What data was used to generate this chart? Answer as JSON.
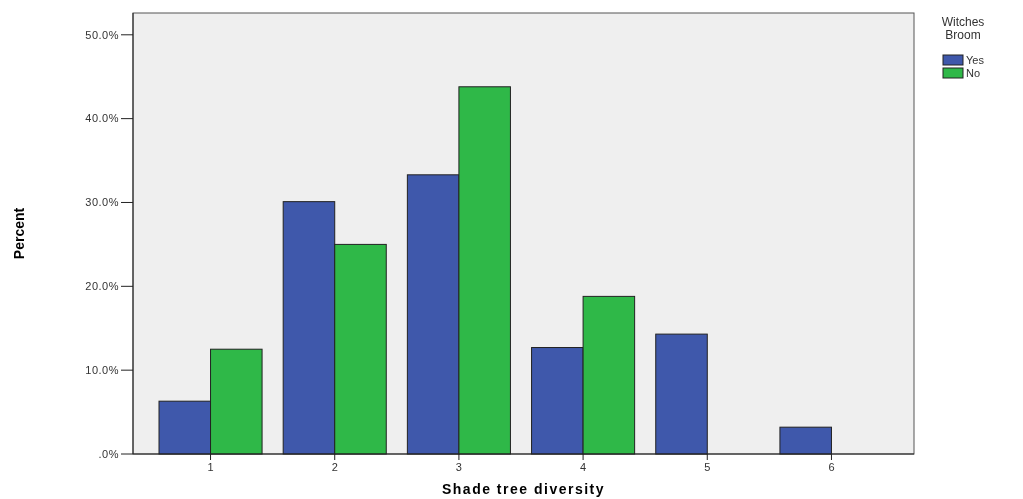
{
  "chart_data": {
    "type": "bar",
    "xlabel": "Shade tree diversity",
    "ylabel": "Percent",
    "legend_title": "Witches Broom",
    "legend": "right",
    "categories": [
      "1",
      "2",
      "3",
      "4",
      "5",
      "6"
    ],
    "series": [
      {
        "name": "Yes",
        "color": "#3f58ab",
        "values": [
          6.3,
          30.1,
          33.3,
          12.7,
          14.3,
          3.2
        ]
      },
      {
        "name": "No",
        "color": "#2fb848",
        "values": [
          12.5,
          25.0,
          43.8,
          18.8,
          0,
          0
        ]
      }
    ],
    "ylim": [
      0,
      52.6
    ],
    "yticks": [
      {
        "value": 0,
        "label": ".0%"
      },
      {
        "value": 10,
        "label": "10.0%"
      },
      {
        "value": 20,
        "label": "20.0%"
      },
      {
        "value": 30,
        "label": "30.0%"
      },
      {
        "value": 40,
        "label": "40.0%"
      },
      {
        "value": 50,
        "label": "50.0%"
      }
    ],
    "grid": false
  }
}
